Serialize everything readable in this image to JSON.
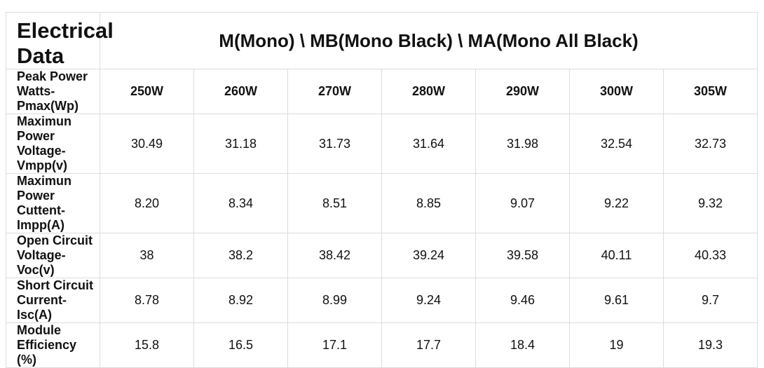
{
  "table": {
    "title": "Electrical Data",
    "group_header": "M(Mono) \\ MB(Mono Black) \\ MA(Mono All Black)",
    "rows": [
      [
        "Peak Power Watts-Pmax(Wp)",
        "250W",
        "260W",
        "270W",
        "280W",
        "290W",
        "300W",
        "305W"
      ],
      [
        "Maximun Power Voltage-Vmpp(v)",
        "30.49",
        "31.18",
        "31.73",
        "31.64",
        "31.98",
        "32.54",
        "32.73"
      ],
      [
        "Maximun Power Cuttent-Impp(A)",
        "8.20",
        "8.34",
        "8.51",
        "8.85",
        "9.07",
        "9.22",
        "9.32"
      ],
      [
        "Open Circuit Voltage-Voc(v)",
        "38",
        "38.2",
        "38.42",
        "39.24",
        "39.58",
        "40.11",
        "40.33"
      ],
      [
        "Short Circuit Current-Isc(A)",
        "8.78",
        "8.92",
        "8.99",
        "9.24",
        "9.46",
        "9.61",
        "9.7"
      ],
      [
        "Module Efficiency (%)",
        "15.8",
        "16.5",
        "17.1",
        "17.7",
        "18.4",
        "19",
        "19.3"
      ]
    ]
  }
}
